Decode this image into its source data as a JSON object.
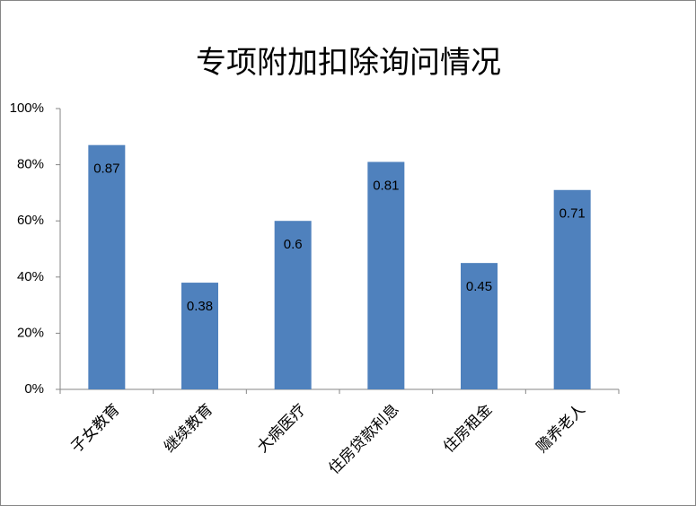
{
  "chart_data": {
    "type": "bar",
    "title": "专项附加扣除询问情况",
    "categories": [
      "子女教育",
      "继续教育",
      "大病医疗",
      "住房贷款利息",
      "住房租金",
      "赡养老人"
    ],
    "values": [
      87,
      38,
      60,
      81,
      45,
      71
    ],
    "value_labels": [
      "0.87",
      "0.38",
      "0.6",
      "0.81",
      "0.45",
      "0.71"
    ],
    "color": "#4f81bd",
    "ylim": [
      0,
      100
    ],
    "yticks": [
      {
        "value": 0,
        "label": "0%"
      },
      {
        "value": 20,
        "label": "20%"
      },
      {
        "value": 40,
        "label": "40%"
      },
      {
        "value": 60,
        "label": "60%"
      },
      {
        "value": 80,
        "label": "80%"
      },
      {
        "value": 100,
        "label": "100%"
      }
    ],
    "grid": false
  }
}
